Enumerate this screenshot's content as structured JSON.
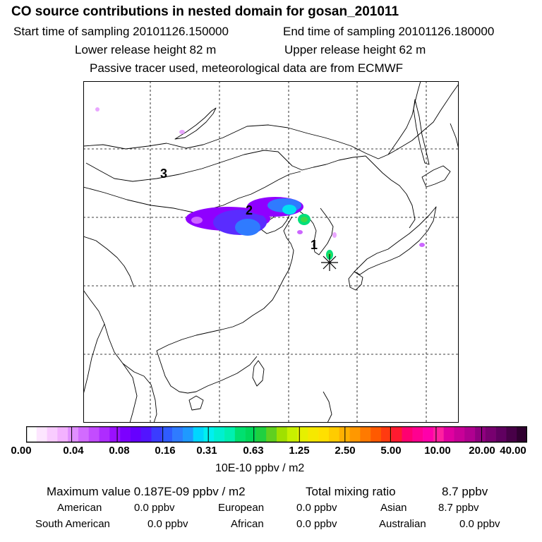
{
  "header": {
    "title": "CO  source contributions in nested domain for gosan_201011",
    "start_label": "Start time of sampling 20101126.150000",
    "end_label": "End time of sampling 20101126.180000",
    "lower_label": "Lower release height   82 m",
    "upper_label": "Upper release height   62 m",
    "tracer_note": "Passive tracer used, meteorological data are from ECMWF"
  },
  "map": {
    "region_labels": [
      "1",
      "2",
      "3"
    ],
    "receptor": "gosan",
    "plume_colors": [
      "#8f00ff",
      "#5a2cff",
      "#2f7bff",
      "#00e0f0",
      "#00e07a",
      "#3cd84a",
      "#cc66ff",
      "#e9a6ff"
    ]
  },
  "colorbar": {
    "ticks": [
      "0.00",
      "0.04",
      "0.08",
      "0.16",
      "0.31",
      "0.63",
      "1.25",
      "2.50",
      "5.00",
      "10.00",
      "20.00",
      "40.00"
    ],
    "unit": "10E-10 ppbv / m2",
    "colors": [
      "#ffffff",
      "#fde6ff",
      "#f9ccff",
      "#f3b2ff",
      "#e08fff",
      "#d26bff",
      "#c34cff",
      "#ae2cff",
      "#9a10ff",
      "#7c00ff",
      "#6600ff",
      "#5214ff",
      "#3b3cff",
      "#2f5cff",
      "#2f7bff",
      "#1f99ff",
      "#00d6ff",
      "#00f0f0",
      "#00f0d0",
      "#00f0b0",
      "#00e070",
      "#00d85a",
      "#20d040",
      "#60d020",
      "#a0e000",
      "#c8f000",
      "#e6f000",
      "#f6e800",
      "#ffe000",
      "#ffcc00",
      "#ffb000",
      "#ff9800",
      "#ff7a00",
      "#ff5a00",
      "#ff3a10",
      "#ff1a30",
      "#ff0070",
      "#ff0090",
      "#ff00aa",
      "#ff20a0",
      "#e000a0",
      "#c80098",
      "#b00090",
      "#900080",
      "#780070",
      "#600060",
      "#480048",
      "#300030"
    ]
  },
  "summary": {
    "max_label": "Maximum value  0.187E-09 ppbv / m2",
    "total_label": "Total mixing ratio",
    "total_value": "8.7 ppbv",
    "regions": [
      {
        "name": "American",
        "value": "0.0 ppbv"
      },
      {
        "name": "European",
        "value": "0.0 ppbv"
      },
      {
        "name": "Asian",
        "value": "8.7 ppbv"
      },
      {
        "name": "South American",
        "value": "0.0 ppbv"
      },
      {
        "name": "African",
        "value": "0.0 ppbv"
      },
      {
        "name": "Australian",
        "value": "0.0 ppbv"
      }
    ]
  }
}
